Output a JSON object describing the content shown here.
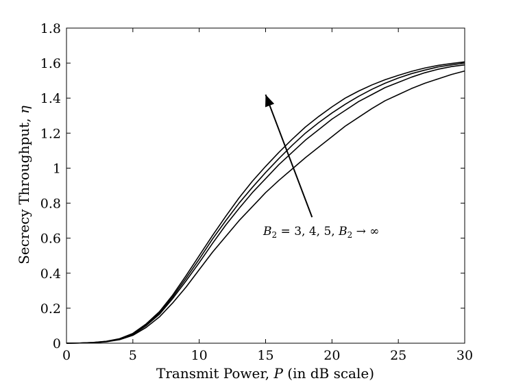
{
  "chart_data": {
    "type": "line",
    "title": "",
    "xlabel": "Transmit Power, P (in dB scale)",
    "ylabel": "Secrecy Throughput, η",
    "xlabel_parts": {
      "prefix": "Transmit Power, ",
      "symbol": "P",
      "suffix": " (in dB scale)"
    },
    "ylabel_parts": {
      "prefix": "Secrecy Throughput, ",
      "symbol": "η"
    },
    "xlim": [
      0,
      30
    ],
    "ylim": [
      0,
      1.8
    ],
    "xticks": [
      "0",
      "5",
      "10",
      "15",
      "20",
      "25",
      "30"
    ],
    "yticks": [
      "0",
      "0.2",
      "0.4",
      "0.6",
      "0.8",
      "1",
      "1.2",
      "1.4",
      "1.6",
      "1.8"
    ],
    "grid": false,
    "x": [
      0,
      1,
      2,
      3,
      4,
      5,
      6,
      7,
      8,
      9,
      10,
      11,
      12,
      13,
      14,
      15,
      16,
      17,
      18,
      19,
      20,
      21,
      22,
      23,
      24,
      25,
      26,
      27,
      28,
      29,
      30
    ],
    "series": [
      {
        "values": [
          0,
          0.001,
          0.003,
          0.008,
          0.02,
          0.045,
          0.09,
          0.15,
          0.23,
          0.32,
          0.42,
          0.52,
          0.61,
          0.7,
          0.78,
          0.86,
          0.93,
          0.995,
          1.06,
          1.12,
          1.18,
          1.24,
          1.29,
          1.34,
          1.385,
          1.42,
          1.455,
          1.485,
          1.51,
          1.535,
          1.555
        ]
      },
      {
        "values": [
          0,
          0.001,
          0.003,
          0.009,
          0.022,
          0.05,
          0.1,
          0.165,
          0.255,
          0.355,
          0.46,
          0.57,
          0.675,
          0.77,
          0.86,
          0.94,
          1.02,
          1.09,
          1.16,
          1.22,
          1.28,
          1.33,
          1.38,
          1.42,
          1.46,
          1.49,
          1.52,
          1.545,
          1.565,
          1.58,
          1.59
        ]
      },
      {
        "values": [
          0,
          0.001,
          0.004,
          0.01,
          0.024,
          0.053,
          0.105,
          0.172,
          0.265,
          0.37,
          0.48,
          0.595,
          0.7,
          0.8,
          0.89,
          0.975,
          1.055,
          1.13,
          1.2,
          1.26,
          1.315,
          1.365,
          1.41,
          1.45,
          1.485,
          1.515,
          1.54,
          1.56,
          1.578,
          1.59,
          1.6
        ]
      },
      {
        "values": [
          0,
          0.001,
          0.004,
          0.011,
          0.026,
          0.056,
          0.11,
          0.18,
          0.275,
          0.385,
          0.5,
          0.615,
          0.725,
          0.83,
          0.925,
          1.01,
          1.09,
          1.165,
          1.235,
          1.295,
          1.35,
          1.4,
          1.44,
          1.475,
          1.505,
          1.53,
          1.553,
          1.572,
          1.587,
          1.598,
          1.607
        ]
      }
    ],
    "annotation": {
      "arrow_from": [
        18.5,
        0.72
      ],
      "arrow_to": [
        15,
        1.42
      ],
      "text_parts": [
        "B",
        "2",
        " = 3, 4, 5, ",
        "B",
        "2",
        " → ∞"
      ]
    }
  }
}
